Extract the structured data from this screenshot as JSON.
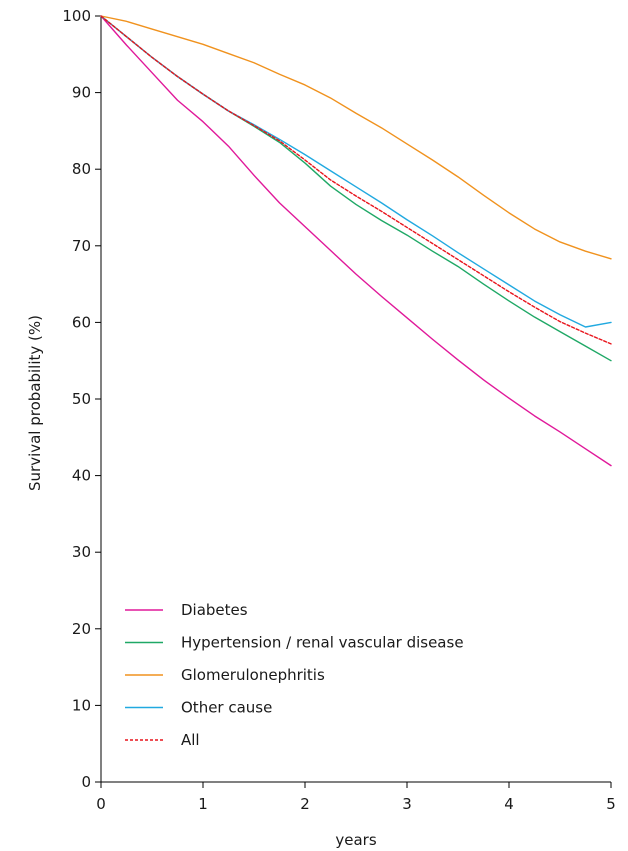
{
  "chart_data": {
    "type": "line",
    "xlabel": "years",
    "ylabel": "Survival probability (%)",
    "xlim": [
      0,
      5
    ],
    "ylim": [
      0,
      100
    ],
    "xticks": [
      0,
      1,
      2,
      3,
      4,
      5
    ],
    "yticks": [
      0,
      10,
      20,
      30,
      40,
      50,
      60,
      70,
      80,
      90,
      100
    ],
    "grid": false,
    "legend_position": "bottom-left",
    "x": [
      0,
      0.25,
      0.5,
      0.75,
      1,
      1.25,
      1.5,
      1.75,
      2,
      2.25,
      2.5,
      2.75,
      3,
      3.25,
      3.5,
      3.75,
      4,
      4.25,
      4.5,
      4.75,
      5
    ],
    "series": [
      {
        "name": "Diabetes",
        "color": "#e0199a",
        "dashed": false,
        "values": [
          100,
          96.2,
          92.6,
          89.0,
          86.2,
          83.0,
          79.2,
          75.6,
          72.5,
          69.4,
          66.3,
          63.4,
          60.6,
          57.8,
          55.1,
          52.5,
          50.1,
          47.8,
          45.7,
          43.5,
          41.3
        ]
      },
      {
        "name": "Hypertension / renal vascular disease",
        "color": "#1fa866",
        "dashed": false,
        "values": [
          100,
          97.3,
          94.6,
          92.1,
          89.8,
          87.6,
          85.6,
          83.5,
          80.8,
          77.8,
          75.4,
          73.3,
          71.4,
          69.3,
          67.3,
          65.0,
          62.8,
          60.7,
          58.8,
          56.9,
          55.0
        ]
      },
      {
        "name": "Glomerulonephritis",
        "color": "#f0921e",
        "dashed": false,
        "values": [
          100,
          99.3,
          98.3,
          97.3,
          96.3,
          95.1,
          93.9,
          92.4,
          91.0,
          89.3,
          87.3,
          85.4,
          83.3,
          81.2,
          79.0,
          76.6,
          74.3,
          72.2,
          70.5,
          69.3,
          68.3
        ]
      },
      {
        "name": "Other cause",
        "color": "#21a9e0",
        "dashed": false,
        "values": [
          100,
          97.3,
          94.6,
          92.1,
          89.8,
          87.6,
          85.8,
          83.9,
          81.9,
          79.8,
          77.7,
          75.6,
          73.4,
          71.3,
          69.1,
          67.0,
          64.9,
          62.8,
          61.0,
          59.4,
          60.0
        ]
      },
      {
        "name": "All",
        "color": "#e8141c",
        "dashed": true,
        "values": [
          100,
          97.3,
          94.6,
          92.1,
          89.8,
          87.6,
          85.7,
          83.7,
          81.2,
          78.6,
          76.5,
          74.5,
          72.4,
          70.3,
          68.2,
          66.1,
          64.0,
          62.0,
          60.1,
          58.6,
          57.2
        ]
      }
    ]
  }
}
